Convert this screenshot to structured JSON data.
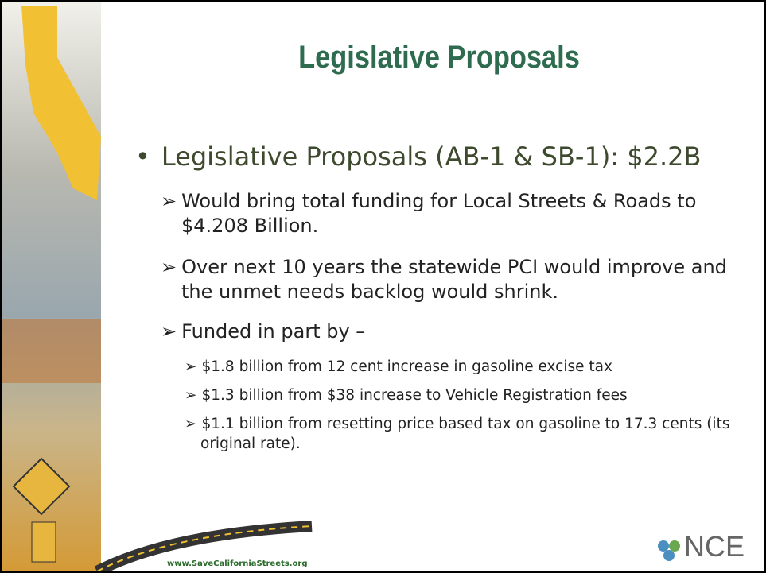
{
  "slide": {
    "title": "Legislative Proposals",
    "bullet": "Legislative Proposals (AB-1 & SB-1): $2.2B",
    "sub_bullets": [
      "Would bring total funding for Local Streets & Roads to $4.208 Billion.",
      "Over next 10 years the statewide PCI would improve and the unmet needs backlog would shrink.",
      "Funded in part by –"
    ],
    "sub_sub_bullets": [
      "$1.8 billion from 12 cent increase in gasoline excise tax",
      "$1.3 billion from $38 increase to Vehicle Registration fees",
      "$1.1 billion from resetting price based tax on gasoline to 17.3 cents (its original rate)."
    ],
    "footer_url": "www.SaveCaliforniaStreets.org",
    "logo": "NCE"
  }
}
